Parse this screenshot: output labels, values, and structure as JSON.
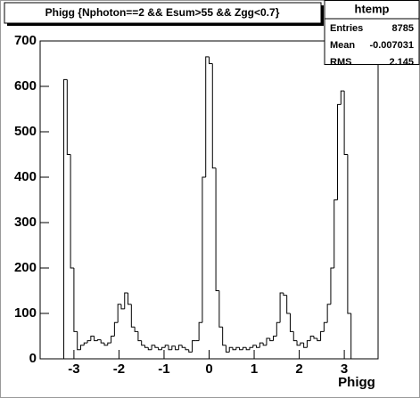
{
  "chart_data": {
    "type": "histogram",
    "title": "Phigg {Nphoton==2 && Esum>55 && Zgg<0.7}",
    "x_label": "Phigg",
    "color": "#000000",
    "bins": [
      -3.75,
      -3.675,
      -3.6,
      -3.525,
      -3.45,
      -3.375,
      -3.3,
      -3.225,
      -3.15,
      -3.075,
      -3,
      -2.925,
      -2.85,
      -2.775,
      -2.7,
      -2.625,
      -2.55,
      -2.475,
      -2.4,
      -2.325,
      -2.25,
      -2.175,
      -2.1,
      -2.025,
      -1.95,
      -1.875,
      -1.8,
      -1.725,
      -1.65,
      -1.575,
      -1.5,
      -1.425,
      -1.35,
      -1.275,
      -1.2,
      -1.125,
      -1.05,
      -0.975,
      -0.9,
      -0.825,
      -0.75,
      -0.675,
      -0.6,
      -0.525,
      -0.45,
      -0.375,
      -0.3,
      -0.225,
      -0.15,
      -0.075,
      0,
      0.075,
      0.15,
      0.225,
      0.3,
      0.375,
      0.45,
      0.525,
      0.6,
      0.675,
      0.75,
      0.825,
      0.9,
      0.975,
      1.05,
      1.125,
      1.2,
      1.275,
      1.35,
      1.425,
      1.5,
      1.575,
      1.65,
      1.725,
      1.8,
      1.875,
      1.95,
      2.025,
      2.1,
      2.175,
      2.25,
      2.325,
      2.4,
      2.475,
      2.55,
      2.625,
      2.7,
      2.775,
      2.85,
      2.925,
      3,
      3.075,
      3.15,
      3.225,
      3.3,
      3.375,
      3.45,
      3.525,
      3.6,
      3.675,
      3.75
    ],
    "values": [
      0,
      0,
      0,
      0,
      0,
      0,
      0,
      615,
      450,
      200,
      60,
      20,
      30,
      35,
      40,
      50,
      40,
      42,
      35,
      30,
      35,
      50,
      80,
      120,
      110,
      145,
      120,
      70,
      60,
      40,
      30,
      25,
      20,
      30,
      25,
      20,
      25,
      30,
      20,
      28,
      20,
      30,
      25,
      20,
      15,
      40,
      40,
      80,
      400,
      665,
      650,
      420,
      150,
      70,
      30,
      15,
      25,
      20,
      25,
      20,
      25,
      20,
      25,
      30,
      25,
      35,
      30,
      45,
      40,
      50,
      80,
      145,
      140,
      100,
      60,
      40,
      30,
      35,
      25,
      40,
      50,
      45,
      40,
      60,
      80,
      120,
      200,
      350,
      560,
      590,
      450,
      100,
      0,
      0,
      0,
      0,
      0,
      0,
      0,
      0
    ],
    "xlim": [
      -3.75,
      3.75
    ],
    "ylim": [
      0,
      700
    ],
    "xticks": [
      -3,
      -2,
      -1,
      0,
      1,
      2,
      3
    ],
    "yticks": [
      0,
      100,
      200,
      300,
      400,
      500,
      600,
      700
    ],
    "stats": {
      "name": "htemp",
      "labels": [
        "Entries",
        "Mean",
        "RMS"
      ],
      "values": [
        8785,
        -0.007031,
        2.145
      ]
    }
  }
}
